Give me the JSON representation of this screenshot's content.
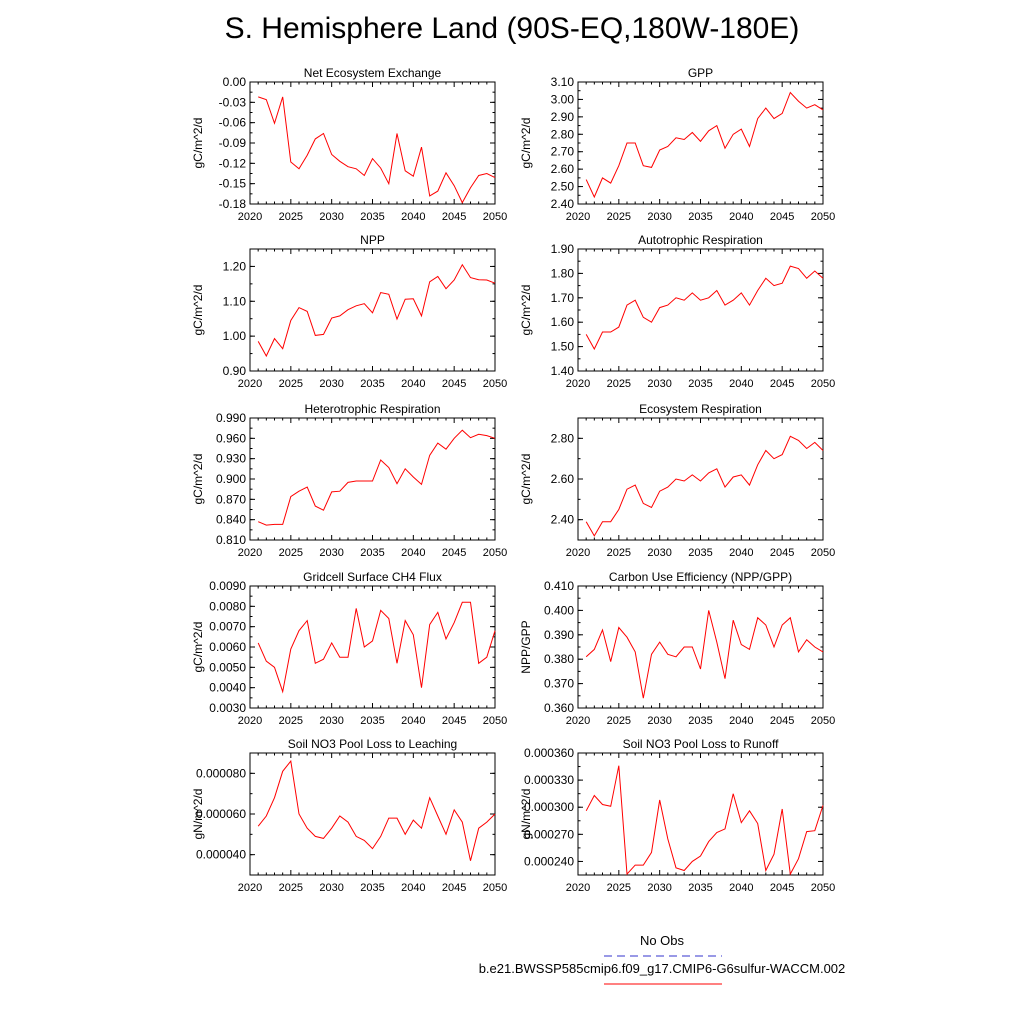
{
  "page_title": "S. Hemisphere Land (90S-EQ,180W-180E)",
  "legend": {
    "items": [
      {
        "label": "No Obs",
        "color": "#3333cc",
        "style": "dashed"
      },
      {
        "label": "b.e21.BWSSP585cmip6.f09_g17.CMIP6-G6sulfur-WACCM.002",
        "color": "#ff0000",
        "style": "solid"
      }
    ]
  },
  "chart_data": [
    {
      "type": "line",
      "title": "Net Ecosystem Exchange",
      "xlabel": "",
      "ylabel": "gC/m^2/d",
      "xlim": [
        2020,
        2050
      ],
      "ylim": [
        -0.18,
        0.0
      ],
      "xticks": [
        2020,
        2025,
        2030,
        2035,
        2040,
        2045,
        2050
      ],
      "yticks": [
        -0.18,
        -0.15,
        -0.12,
        -0.09,
        -0.06,
        -0.03,
        0.0
      ],
      "ytick_labels": [
        "-0.18",
        "-0.15",
        "-0.12",
        "-0.09",
        "-0.06",
        "-0.03",
        "0.00"
      ],
      "series": [
        {
          "color": "#ff0000",
          "x": [
            2021,
            2022,
            2023,
            2024,
            2025,
            2026,
            2027,
            2028,
            2029,
            2030,
            2031,
            2032,
            2033,
            2034,
            2035,
            2036,
            2037,
            2038,
            2039,
            2040,
            2041,
            2042,
            2043,
            2044,
            2045,
            2046,
            2047,
            2048,
            2049,
            2050
          ],
          "y": [
            -0.022,
            -0.026,
            -0.061,
            -0.022,
            -0.118,
            -0.128,
            -0.108,
            -0.084,
            -0.076,
            -0.107,
            -0.117,
            -0.125,
            -0.128,
            -0.138,
            -0.113,
            -0.127,
            -0.15,
            -0.076,
            -0.131,
            -0.139,
            -0.096,
            -0.168,
            -0.161,
            -0.134,
            -0.153,
            -0.178,
            -0.156,
            -0.138,
            -0.135,
            -0.141
          ]
        }
      ]
    },
    {
      "type": "line",
      "title": "GPP",
      "xlabel": "",
      "ylabel": "gC/m^2/d",
      "xlim": [
        2020,
        2050
      ],
      "ylim": [
        2.4,
        3.1
      ],
      "xticks": [
        2020,
        2025,
        2030,
        2035,
        2040,
        2045,
        2050
      ],
      "yticks": [
        2.4,
        2.5,
        2.6,
        2.7,
        2.8,
        2.9,
        3.0,
        3.1
      ],
      "ytick_labels": [
        "2.40",
        "2.50",
        "2.60",
        "2.70",
        "2.80",
        "2.90",
        "3.00",
        "3.10"
      ],
      "series": [
        {
          "color": "#ff0000",
          "x": [
            2021,
            2022,
            2023,
            2024,
            2025,
            2026,
            2027,
            2028,
            2029,
            2030,
            2031,
            2032,
            2033,
            2034,
            2035,
            2036,
            2037,
            2038,
            2039,
            2040,
            2041,
            2042,
            2043,
            2044,
            2045,
            2046,
            2047,
            2048,
            2049,
            2050
          ],
          "y": [
            2.54,
            2.44,
            2.55,
            2.52,
            2.62,
            2.75,
            2.75,
            2.62,
            2.61,
            2.71,
            2.73,
            2.78,
            2.77,
            2.81,
            2.76,
            2.82,
            2.85,
            2.72,
            2.8,
            2.83,
            2.73,
            2.89,
            2.95,
            2.89,
            2.92,
            3.04,
            2.99,
            2.95,
            2.97,
            2.94
          ]
        }
      ]
    },
    {
      "type": "line",
      "title": "NPP",
      "xlabel": "",
      "ylabel": "gC/m^2/d",
      "xlim": [
        2020,
        2050
      ],
      "ylim": [
        0.9,
        1.25
      ],
      "xticks": [
        2020,
        2025,
        2030,
        2035,
        2040,
        2045,
        2050
      ],
      "yticks": [
        0.9,
        1.0,
        1.1,
        1.2
      ],
      "ytick_labels": [
        "0.90",
        "1.00",
        "1.10",
        "1.20"
      ],
      "series": [
        {
          "color": "#ff0000",
          "x": [
            2021,
            2022,
            2023,
            2024,
            2025,
            2026,
            2027,
            2028,
            2029,
            2030,
            2031,
            2032,
            2033,
            2034,
            2035,
            2036,
            2037,
            2038,
            2039,
            2040,
            2041,
            2042,
            2043,
            2044,
            2045,
            2046,
            2047,
            2048,
            2049,
            2050
          ],
          "y": [
            0.985,
            0.943,
            0.993,
            0.964,
            1.045,
            1.082,
            1.071,
            1.002,
            1.005,
            1.052,
            1.058,
            1.076,
            1.087,
            1.093,
            1.067,
            1.125,
            1.12,
            1.049,
            1.106,
            1.107,
            1.058,
            1.156,
            1.171,
            1.136,
            1.161,
            1.205,
            1.168,
            1.162,
            1.161,
            1.152
          ]
        }
      ]
    },
    {
      "type": "line",
      "title": "Autotrophic Respiration",
      "xlabel": "",
      "ylabel": "gC/m^2/d",
      "xlim": [
        2020,
        2050
      ],
      "ylim": [
        1.4,
        1.9
      ],
      "xticks": [
        2020,
        2025,
        2030,
        2035,
        2040,
        2045,
        2050
      ],
      "yticks": [
        1.4,
        1.5,
        1.6,
        1.7,
        1.8,
        1.9
      ],
      "ytick_labels": [
        "1.40",
        "1.50",
        "1.60",
        "1.70",
        "1.80",
        "1.90"
      ],
      "series": [
        {
          "color": "#ff0000",
          "x": [
            2021,
            2022,
            2023,
            2024,
            2025,
            2026,
            2027,
            2028,
            2029,
            2030,
            2031,
            2032,
            2033,
            2034,
            2035,
            2036,
            2037,
            2038,
            2039,
            2040,
            2041,
            2042,
            2043,
            2044,
            2045,
            2046,
            2047,
            2048,
            2049,
            2050
          ],
          "y": [
            1.55,
            1.49,
            1.56,
            1.56,
            1.58,
            1.67,
            1.69,
            1.62,
            1.6,
            1.66,
            1.67,
            1.7,
            1.69,
            1.72,
            1.69,
            1.7,
            1.73,
            1.67,
            1.69,
            1.72,
            1.67,
            1.73,
            1.78,
            1.75,
            1.76,
            1.83,
            1.82,
            1.78,
            1.81,
            1.78
          ]
        }
      ]
    },
    {
      "type": "line",
      "title": "Heterotrophic Respiration",
      "xlabel": "",
      "ylabel": "gC/m^2/d",
      "xlim": [
        2020,
        2050
      ],
      "ylim": [
        0.81,
        0.99
      ],
      "xticks": [
        2020,
        2025,
        2030,
        2035,
        2040,
        2045,
        2050
      ],
      "yticks": [
        0.81,
        0.84,
        0.87,
        0.9,
        0.93,
        0.96,
        0.99
      ],
      "ytick_labels": [
        "0.810",
        "0.840",
        "0.870",
        "0.900",
        "0.930",
        "0.960",
        "0.990"
      ],
      "series": [
        {
          "color": "#ff0000",
          "x": [
            2021,
            2022,
            2023,
            2024,
            2025,
            2026,
            2027,
            2028,
            2029,
            2030,
            2031,
            2032,
            2033,
            2034,
            2035,
            2036,
            2037,
            2038,
            2039,
            2040,
            2041,
            2042,
            2043,
            2044,
            2045,
            2046,
            2047,
            2048,
            2049,
            2050
          ],
          "y": [
            0.837,
            0.832,
            0.833,
            0.833,
            0.874,
            0.882,
            0.888,
            0.86,
            0.854,
            0.881,
            0.882,
            0.895,
            0.897,
            0.897,
            0.897,
            0.928,
            0.917,
            0.893,
            0.915,
            0.903,
            0.892,
            0.935,
            0.953,
            0.944,
            0.96,
            0.972,
            0.961,
            0.966,
            0.964,
            0.96
          ]
        }
      ]
    },
    {
      "type": "line",
      "title": "Ecosystem Respiration",
      "xlabel": "",
      "ylabel": "gC/m^2/d",
      "xlim": [
        2020,
        2050
      ],
      "ylim": [
        2.3,
        2.9
      ],
      "xticks": [
        2020,
        2025,
        2030,
        2035,
        2040,
        2045,
        2050
      ],
      "yticks": [
        2.4,
        2.6,
        2.8
      ],
      "ytick_labels": [
        "2.40",
        "2.60",
        "2.80"
      ],
      "series": [
        {
          "color": "#ff0000",
          "x": [
            2021,
            2022,
            2023,
            2024,
            2025,
            2026,
            2027,
            2028,
            2029,
            2030,
            2031,
            2032,
            2033,
            2034,
            2035,
            2036,
            2037,
            2038,
            2039,
            2040,
            2041,
            2042,
            2043,
            2044,
            2045,
            2046,
            2047,
            2048,
            2049,
            2050
          ],
          "y": [
            2.39,
            2.32,
            2.39,
            2.39,
            2.45,
            2.55,
            2.57,
            2.48,
            2.46,
            2.54,
            2.56,
            2.6,
            2.59,
            2.62,
            2.59,
            2.63,
            2.65,
            2.56,
            2.61,
            2.62,
            2.57,
            2.67,
            2.74,
            2.7,
            2.72,
            2.81,
            2.79,
            2.75,
            2.78,
            2.74
          ]
        }
      ]
    },
    {
      "type": "line",
      "title": "Gridcell Surface CH4 Flux",
      "xlabel": "",
      "ylabel": "gC/m^2/d",
      "xlim": [
        2020,
        2050
      ],
      "ylim": [
        0.003,
        0.009
      ],
      "xticks": [
        2020,
        2025,
        2030,
        2035,
        2040,
        2045,
        2050
      ],
      "yticks": [
        0.003,
        0.004,
        0.005,
        0.006,
        0.007,
        0.008,
        0.009
      ],
      "ytick_labels": [
        "0.0030",
        "0.0040",
        "0.0050",
        "0.0060",
        "0.0070",
        "0.0080",
        "0.0090"
      ],
      "series": [
        {
          "color": "#ff0000",
          "x": [
            2021,
            2022,
            2023,
            2024,
            2025,
            2026,
            2027,
            2028,
            2029,
            2030,
            2031,
            2032,
            2033,
            2034,
            2035,
            2036,
            2037,
            2038,
            2039,
            2040,
            2041,
            2042,
            2043,
            2044,
            2045,
            2046,
            2047,
            2048,
            2049,
            2050
          ],
          "y": [
            0.0062,
            0.0053,
            0.005,
            0.0038,
            0.0059,
            0.0068,
            0.0073,
            0.0052,
            0.0054,
            0.0062,
            0.0055,
            0.0055,
            0.0079,
            0.006,
            0.0063,
            0.0078,
            0.0074,
            0.0052,
            0.0073,
            0.0066,
            0.004,
            0.0071,
            0.0077,
            0.0064,
            0.0072,
            0.0082,
            0.0082,
            0.0052,
            0.0055,
            0.0068
          ]
        }
      ]
    },
    {
      "type": "line",
      "title": "Carbon Use Efficiency (NPP/GPP)",
      "xlabel": "",
      "ylabel": "NPP/GPP",
      "xlim": [
        2020,
        2050
      ],
      "ylim": [
        0.36,
        0.41
      ],
      "xticks": [
        2020,
        2025,
        2030,
        2035,
        2040,
        2045,
        2050
      ],
      "yticks": [
        0.36,
        0.37,
        0.38,
        0.39,
        0.4,
        0.41
      ],
      "ytick_labels": [
        "0.360",
        "0.370",
        "0.380",
        "0.390",
        "0.400",
        "0.410"
      ],
      "series": [
        {
          "color": "#ff0000",
          "x": [
            2021,
            2022,
            2023,
            2024,
            2025,
            2026,
            2027,
            2028,
            2029,
            2030,
            2031,
            2032,
            2033,
            2034,
            2035,
            2036,
            2037,
            2038,
            2039,
            2040,
            2041,
            2042,
            2043,
            2044,
            2045,
            2046,
            2047,
            2048,
            2049,
            2050
          ],
          "y": [
            0.381,
            0.384,
            0.392,
            0.379,
            0.393,
            0.389,
            0.383,
            0.364,
            0.382,
            0.387,
            0.382,
            0.381,
            0.385,
            0.385,
            0.376,
            0.4,
            0.387,
            0.372,
            0.396,
            0.386,
            0.384,
            0.397,
            0.394,
            0.385,
            0.394,
            0.397,
            0.383,
            0.388,
            0.385,
            0.383
          ]
        }
      ]
    },
    {
      "type": "line",
      "title": "Soil NO3 Pool Loss to Leaching",
      "xlabel": "",
      "ylabel": "gN/m^2/d",
      "xlim": [
        2020,
        2050
      ],
      "ylim": [
        3e-05,
        9e-05
      ],
      "xticks": [
        2020,
        2025,
        2030,
        2035,
        2040,
        2045,
        2050
      ],
      "yticks": [
        4e-05,
        6e-05,
        8e-05
      ],
      "ytick_labels": [
        "0.000040",
        "0.000060",
        "0.000080"
      ],
      "series": [
        {
          "color": "#ff0000",
          "x": [
            2021,
            2022,
            2023,
            2024,
            2025,
            2026,
            2027,
            2028,
            2029,
            2030,
            2031,
            2032,
            2033,
            2034,
            2035,
            2036,
            2037,
            2038,
            2039,
            2040,
            2041,
            2042,
            2043,
            2044,
            2045,
            2046,
            2047,
            2048,
            2049,
            2050
          ],
          "y": [
            5.4e-05,
            5.9e-05,
            6.8e-05,
            8.1e-05,
            8.6e-05,
            6e-05,
            5.3e-05,
            4.9e-05,
            4.8e-05,
            5.3e-05,
            5.9e-05,
            5.6e-05,
            4.9e-05,
            4.7e-05,
            4.3e-05,
            4.9e-05,
            5.8e-05,
            5.8e-05,
            5e-05,
            5.7e-05,
            5.3e-05,
            6.8e-05,
            5.9e-05,
            5e-05,
            6.2e-05,
            5.6e-05,
            3.7e-05,
            5.3e-05,
            5.6e-05,
            6e-05
          ]
        }
      ]
    },
    {
      "type": "line",
      "title": "Soil NO3 Pool Loss to Runoff",
      "xlabel": "",
      "ylabel": "gN/m^2/d",
      "xlim": [
        2020,
        2050
      ],
      "ylim": [
        0.000225,
        0.00036
      ],
      "xticks": [
        2020,
        2025,
        2030,
        2035,
        2040,
        2045,
        2050
      ],
      "yticks": [
        0.00024,
        0.00027,
        0.0003,
        0.00033,
        0.00036
      ],
      "ytick_labels": [
        "0.000240",
        "0.000270",
        "0.000300",
        "0.000330",
        "0.000360"
      ],
      "series": [
        {
          "color": "#ff0000",
          "x": [
            2021,
            2022,
            2023,
            2024,
            2025,
            2026,
            2027,
            2028,
            2029,
            2030,
            2031,
            2032,
            2033,
            2034,
            2035,
            2036,
            2037,
            2038,
            2039,
            2040,
            2041,
            2042,
            2043,
            2044,
            2045,
            2046,
            2047,
            2048,
            2049,
            2050
          ],
          "y": [
            0.000296,
            0.000313,
            0.000303,
            0.000301,
            0.000346,
            0.000226,
            0.000236,
            0.000236,
            0.00025,
            0.000308,
            0.000265,
            0.000233,
            0.00023,
            0.00024,
            0.000246,
            0.000262,
            0.000272,
            0.000276,
            0.000315,
            0.000283,
            0.000296,
            0.000282,
            0.00023,
            0.000248,
            0.000298,
            0.000226,
            0.000243,
            0.000273,
            0.000274,
            0.000302
          ]
        }
      ]
    }
  ]
}
